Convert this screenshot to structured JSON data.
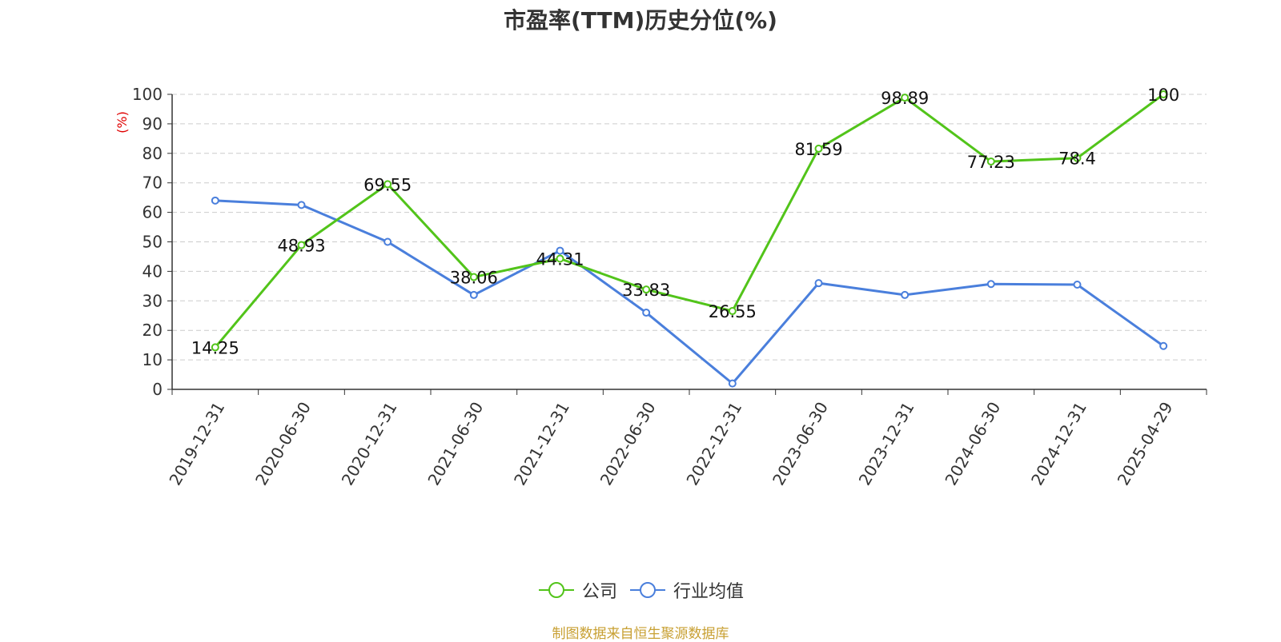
{
  "title": "市盈率(TTM)历史分位(%)",
  "source": "制图数据来自恒生聚源数据库",
  "colors": {
    "company": "#52c41a",
    "industry": "#4a7fdc",
    "grid": "#cccccc",
    "axis": "#333333",
    "unit": "#e00000"
  },
  "chart_data": {
    "type": "line",
    "title": "市盈率(TTM)历史分位(%)",
    "xlabel": "",
    "ylabel": "(%)",
    "ylim": [
      0,
      100
    ],
    "yticks": [
      0,
      10,
      20,
      30,
      40,
      50,
      60,
      70,
      80,
      90,
      100
    ],
    "grid": true,
    "legend_position": "bottom",
    "categories": [
      "2019-12-31",
      "2020-06-30",
      "2020-12-31",
      "2021-06-30",
      "2021-12-31",
      "2022-06-30",
      "2022-12-31",
      "2023-06-30",
      "2023-12-31",
      "2024-06-30",
      "2024-12-31",
      "2025-04-29"
    ],
    "series": [
      {
        "name": "公司",
        "values": [
          14.25,
          48.93,
          69.55,
          38.06,
          44.31,
          33.83,
          26.55,
          81.59,
          98.89,
          77.23,
          78.4,
          100
        ],
        "labels": [
          "14.25",
          "48.93",
          "69.55",
          "38.06",
          "44.31",
          "33.83",
          "26.55",
          "81.59",
          "98.89",
          "77.23",
          "78.4",
          "100"
        ]
      },
      {
        "name": "行业均值",
        "values": [
          64,
          62.5,
          50,
          32,
          47,
          26,
          2,
          36,
          32,
          35.7,
          35.5,
          14.7
        ]
      }
    ]
  }
}
